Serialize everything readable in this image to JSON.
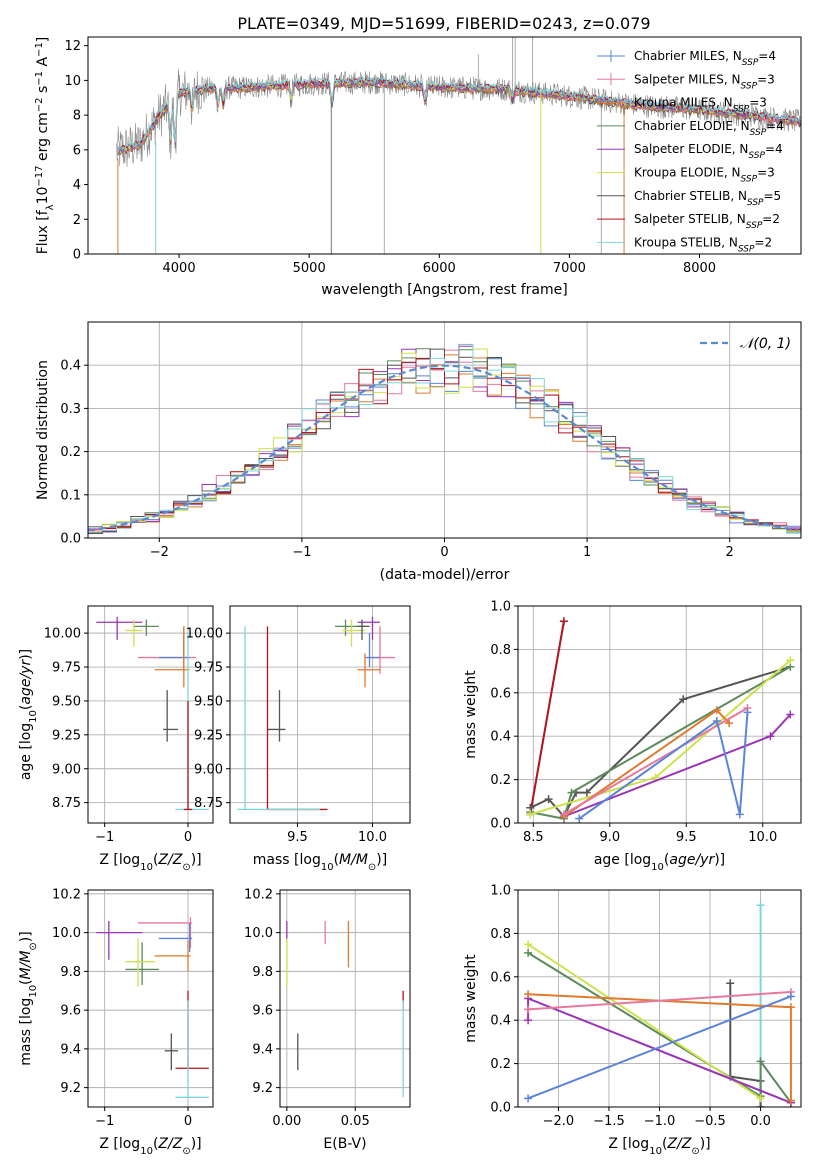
{
  "title": "PLATE=0349, MJD=51699, FIBERID=0243, z=0.079",
  "colors": {
    "Chabrier MILES": "#5b84d8",
    "Salpeter MILES": "#e8799e",
    "Kroupa MILES": "#e07a2e",
    "Chabrier ELODIE": "#5b8a5b",
    "Salpeter ELODIE": "#9a35b5",
    "Kroupa ELODIE": "#cde24a",
    "Chabrier STELIB": "#555555",
    "Salpeter STELIB": "#b5131e",
    "Kroupa STELIB": "#7fd6d8"
  },
  "chart_data": [
    {
      "id": "spectrum",
      "type": "line",
      "title": "PLATE=0349, MJD=51699, FIBERID=0243, z=0.079",
      "xlabel": "wavelength [Angstrom, rest frame]",
      "ylabel_parts": [
        "Flux [f",
        "λ",
        "10",
        "−17",
        " erg cm",
        "−2",
        " s",
        "−1",
        " A",
        "−1",
        "]"
      ],
      "xlim": [
        3300,
        8780
      ],
      "ylim": [
        0,
        12.5
      ],
      "xticks": [
        4000,
        5000,
        6000,
        7000,
        8000
      ],
      "yticks": [
        0,
        2,
        4,
        6,
        8,
        10,
        12
      ],
      "legend_position": "top-right",
      "legend": [
        {
          "name": "Chabrier MILES",
          "nssp": "4"
        },
        {
          "name": "Salpeter MILES",
          "nssp": "3"
        },
        {
          "name": "Kroupa MILES",
          "nssp": "3"
        },
        {
          "name": "Chabrier ELODIE",
          "nssp": "4"
        },
        {
          "name": "Salpeter ELODIE",
          "nssp": "4"
        },
        {
          "name": "Kroupa ELODIE",
          "nssp": "3"
        },
        {
          "name": "Chabrier STELIB",
          "nssp": "5"
        },
        {
          "name": "Salpeter STELIB",
          "nssp": "2"
        },
        {
          "name": "Kroupa STELIB",
          "nssp": "2"
        }
      ],
      "legend_prefix": "N",
      "legend_sub": "SSP",
      "data_continuum": [
        [
          3500,
          5.9
        ],
        [
          3700,
          6.3
        ],
        [
          3850,
          8.0
        ],
        [
          4000,
          9.3
        ],
        [
          4200,
          9.5
        ],
        [
          4500,
          9.6
        ],
        [
          4800,
          9.7
        ],
        [
          5000,
          9.8
        ],
        [
          5500,
          9.9
        ],
        [
          6000,
          9.6
        ],
        [
          6500,
          9.5
        ],
        [
          7000,
          9.1
        ],
        [
          7500,
          8.6
        ],
        [
          8000,
          8.3
        ],
        [
          8500,
          7.9
        ],
        [
          8800,
          7.6
        ]
      ]
    },
    {
      "id": "residuals",
      "type": "histogram",
      "xlabel": "(data-model)/error",
      "ylabel": "Normed distribution",
      "xlim": [
        -2.5,
        2.5
      ],
      "ylim": [
        0,
        0.5
      ],
      "xticks": [
        -2,
        -1,
        0,
        1,
        2
      ],
      "yticks": [
        0.0,
        0.1,
        0.2,
        0.3,
        0.4
      ],
      "legend_label": "𝒩(0, 1)",
      "legend_position": "top-right",
      "bin_width": 0.1
    },
    {
      "id": "age-vs-Z",
      "type": "scatter",
      "xlabel": "Z [log10(Z/Z⊙)]",
      "ylabel": "age [log10(age/yr)]",
      "xlim": [
        -1.2,
        0.3
      ],
      "ylim": [
        8.6,
        10.2
      ],
      "xticks": [
        -1,
        0
      ],
      "yticks": [
        8.75,
        9.0,
        9.25,
        9.5,
        9.75,
        10.0
      ],
      "crosses": [
        {
          "model": "Salpeter ELODIE",
          "x": -0.85,
          "y": 10.08,
          "xl": -1.1,
          "xh": -0.55,
          "yl": 9.95,
          "yh": 10.12
        },
        {
          "model": "Chabrier ELODIE",
          "x": -0.5,
          "y": 10.05,
          "xl": -0.65,
          "xh": -0.35,
          "yl": 9.98,
          "yh": 10.1
        },
        {
          "model": "Kroupa ELODIE",
          "x": -0.65,
          "y": 10.02,
          "xl": -0.75,
          "xh": -0.55,
          "yl": 9.9,
          "yh": 10.1
        },
        {
          "model": "Salpeter MILES",
          "x": -0.05,
          "y": 9.82,
          "xl": -0.6,
          "xh": 0.1,
          "yl": 9.7,
          "yh": 10.05
        },
        {
          "model": "Chabrier MILES",
          "x": -0.05,
          "y": 9.82,
          "xl": -0.35,
          "xh": 0.02,
          "yl": 9.75,
          "yh": 10.0
        },
        {
          "model": "Kroupa MILES",
          "x": -0.05,
          "y": 9.73,
          "xl": -0.4,
          "xh": 0.02,
          "yl": 9.6,
          "yh": 10.05
        },
        {
          "model": "Chabrier STELIB",
          "x": -0.25,
          "y": 9.29,
          "xl": -0.3,
          "xh": -0.12,
          "yl": 9.2,
          "yh": 9.58
        },
        {
          "model": "Kroupa STELIB",
          "x": 0.0,
          "y": 8.7,
          "xl": -0.15,
          "xh": 0.25,
          "yl": 8.7,
          "yh": 10.0
        },
        {
          "model": "Salpeter STELIB",
          "x": 0.0,
          "y": 8.7,
          "xl": -0.05,
          "xh": 0.05,
          "yl": 8.7,
          "yh": 9.5
        }
      ]
    },
    {
      "id": "age-vs-mass",
      "type": "scatter",
      "xlabel": "mass [log10(M/M⊙)]",
      "xlim": [
        9.05,
        10.25
      ],
      "ylim": [
        8.6,
        10.2
      ],
      "xticks": [
        9.5,
        10.0
      ],
      "yticks": [
        8.75,
        9.0,
        9.25,
        9.5,
        9.75,
        10.0
      ],
      "crosses": [
        {
          "model": "Salpeter ELODIE",
          "x": 10.0,
          "y": 10.08,
          "xl": 9.9,
          "xh": 10.05,
          "yl": 9.95,
          "yh": 10.12
        },
        {
          "model": "Chabrier ELODIE",
          "x": 9.82,
          "y": 10.05,
          "xl": 9.75,
          "xh": 9.95,
          "yl": 9.98,
          "yh": 10.1
        },
        {
          "model": "Kroupa ELODIE",
          "x": 9.86,
          "y": 10.02,
          "xl": 9.8,
          "xh": 9.95,
          "yl": 9.9,
          "yh": 10.1
        },
        {
          "model": "Chabrier STELIB",
          "x": 9.93,
          "y": 10.05,
          "xl": 9.9,
          "xh": 9.98,
          "yl": 9.95,
          "yh": 10.1
        },
        {
          "model": "Salpeter MILES",
          "x": 10.05,
          "y": 9.82,
          "xl": 9.98,
          "xh": 10.15,
          "yl": 9.7,
          "yh": 10.05
        },
        {
          "model": "Chabrier MILES",
          "x": 9.98,
          "y": 9.82,
          "xl": 9.95,
          "xh": 10.05,
          "yl": 9.75,
          "yh": 10.0
        },
        {
          "model": "Kroupa MILES",
          "x": 9.95,
          "y": 9.73,
          "xl": 9.9,
          "xh": 10.05,
          "yl": 9.6,
          "yh": 9.85
        },
        {
          "model": "Chabrier STELIB",
          "x": 9.38,
          "y": 9.29,
          "xl": 9.3,
          "xh": 9.42,
          "yl": 9.2,
          "yh": 9.58
        },
        {
          "model": "Salpeter STELIB",
          "x": 9.3,
          "y": 8.7,
          "xl": 9.3,
          "xh": 9.7,
          "yl": 8.7,
          "yh": 10.05
        },
        {
          "model": "Kroupa STELIB",
          "x": 9.15,
          "y": 8.7,
          "xl": 9.1,
          "xh": 9.65,
          "yl": 8.7,
          "yh": 10.05
        }
      ]
    },
    {
      "id": "weight-vs-age",
      "type": "line",
      "xlabel": "age [log10(age/yr)]",
      "ylabel": "mass weight",
      "xlim": [
        8.4,
        10.25
      ],
      "ylim": [
        0,
        1
      ],
      "xticks": [
        8.5,
        9.0,
        9.5,
        10.0
      ],
      "yticks": [
        0.0,
        0.2,
        0.4,
        0.6,
        0.8,
        1.0
      ],
      "series": [
        {
          "model": "Kroupa STELIB",
          "points": [
            [
              8.48,
              0.04
            ],
            [
              8.7,
              0.93
            ]
          ]
        },
        {
          "model": "Salpeter STELIB",
          "points": [
            [
              8.48,
              0.04
            ],
            [
              8.7,
              0.93
            ]
          ]
        },
        {
          "model": "Chabrier STELIB",
          "points": [
            [
              8.48,
              0.07
            ],
            [
              8.6,
              0.11
            ],
            [
              8.7,
              0.03
            ],
            [
              8.78,
              0.14
            ],
            [
              8.85,
              0.14
            ],
            [
              9.48,
              0.57
            ],
            [
              10.18,
              0.72
            ]
          ]
        },
        {
          "model": "Chabrier ELODIE",
          "points": [
            [
              8.48,
              0.05
            ],
            [
              8.7,
              0.02
            ],
            [
              8.75,
              0.14
            ],
            [
              10.18,
              0.72
            ]
          ]
        },
        {
          "model": "Kroupa ELODIE",
          "points": [
            [
              8.48,
              0.04
            ],
            [
              9.3,
              0.21
            ],
            [
              10.18,
              0.75
            ]
          ]
        },
        {
          "model": "Salpeter ELODIE",
          "points": [
            [
              8.7,
              0.03
            ],
            [
              10.05,
              0.4
            ],
            [
              10.18,
              0.5
            ]
          ]
        },
        {
          "model": "Kroupa MILES",
          "points": [
            [
              8.7,
              0.03
            ],
            [
              9.7,
              0.52
            ],
            [
              9.78,
              0.46
            ]
          ]
        },
        {
          "model": "Salpeter MILES",
          "points": [
            [
              8.7,
              0.04
            ],
            [
              9.9,
              0.53
            ]
          ]
        },
        {
          "model": "Chabrier MILES",
          "points": [
            [
              8.8,
              0.02
            ],
            [
              9.7,
              0.47
            ],
            [
              9.85,
              0.04
            ],
            [
              9.9,
              0.51
            ]
          ]
        }
      ]
    },
    {
      "id": "mass-vs-Z",
      "type": "scatter",
      "xlabel": "Z [log10(Z/Z⊙)]",
      "ylabel": "mass [log10(M/M⊙)]",
      "xlim": [
        -1.2,
        0.3
      ],
      "ylim": [
        9.1,
        10.22
      ],
      "xticks": [
        -1,
        0
      ],
      "yticks": [
        9.2,
        9.4,
        9.6,
        9.8,
        10.0,
        10.2
      ],
      "crosses": [
        {
          "model": "Salpeter ELODIE",
          "x": -0.95,
          "y": 10.0,
          "xl": -1.1,
          "xh": -0.55,
          "yl": 9.86,
          "yh": 10.06
        },
        {
          "model": "Chabrier ELODIE",
          "x": -0.55,
          "y": 9.81,
          "xl": -0.75,
          "xh": -0.35,
          "yl": 9.73,
          "yh": 9.95
        },
        {
          "model": "Kroupa ELODIE",
          "x": -0.6,
          "y": 9.85,
          "xl": -0.75,
          "xh": -0.4,
          "yl": 9.72,
          "yh": 9.97
        },
        {
          "model": "Salpeter MILES",
          "x": 0.03,
          "y": 10.05,
          "xl": -0.6,
          "xh": 0.05,
          "yl": 9.92,
          "yh": 10.08
        },
        {
          "model": "Chabrier MILES",
          "x": 0.02,
          "y": 9.97,
          "xl": -0.35,
          "xh": 0.05,
          "yl": 9.9,
          "yh": 10.05
        },
        {
          "model": "Kroupa MILES",
          "x": 0.0,
          "y": 9.88,
          "xl": -0.4,
          "xh": 0.03,
          "yl": 9.8,
          "yh": 9.96
        },
        {
          "model": "Chabrier STELIB",
          "x": -0.2,
          "y": 9.39,
          "xl": -0.28,
          "xh": -0.12,
          "yl": 9.29,
          "yh": 9.48
        },
        {
          "model": "Salpeter STELIB",
          "x": 0.0,
          "y": 9.3,
          "xl": -0.15,
          "xh": 0.25,
          "yl": 9.3,
          "yh": 9.7
        },
        {
          "model": "Kroupa STELIB",
          "x": 0.0,
          "y": 9.15,
          "xl": -0.15,
          "xh": 0.25,
          "yl": 9.15,
          "yh": 9.65
        }
      ]
    },
    {
      "id": "mass-vs-EBV",
      "type": "scatter",
      "xlabel": "E(B-V)",
      "xlim": [
        -0.005,
        0.09
      ],
      "ylim": [
        9.1,
        10.22
      ],
      "xticks": [
        0.0,
        0.05
      ],
      "yticks": [
        9.2,
        9.4,
        9.6,
        9.8,
        10.0,
        10.2
      ],
      "crosses": [
        {
          "model": "Salpeter ELODIE",
          "x": 0.0,
          "y": 10.0,
          "xl": 0.0,
          "xh": 0.0,
          "yl": 9.95,
          "yh": 10.06
        },
        {
          "model": "Kroupa ELODIE",
          "x": 0.0,
          "y": 9.85,
          "xl": 0.0,
          "xh": 0.0,
          "yl": 9.72,
          "yh": 9.97
        },
        {
          "model": "Salpeter MILES",
          "x": 0.028,
          "y": 10.0,
          "xl": 0.028,
          "xh": 0.028,
          "yl": 9.94,
          "yh": 10.06
        },
        {
          "model": "Kroupa MILES",
          "x": 0.045,
          "y": 9.95,
          "xl": 0.045,
          "xh": 0.045,
          "yl": 9.82,
          "yh": 10.06
        },
        {
          "model": "Chabrier STELIB",
          "x": 0.008,
          "y": 9.39,
          "xl": 0.008,
          "xh": 0.008,
          "yl": 9.29,
          "yh": 9.48
        },
        {
          "model": "Salpeter STELIB",
          "x": 0.085,
          "y": 9.6,
          "xl": 0.085,
          "xh": 0.085,
          "yl": 9.6,
          "yh": 9.7
        },
        {
          "model": "Kroupa STELIB",
          "x": 0.085,
          "y": 9.3,
          "xl": 0.085,
          "xh": 0.085,
          "yl": 9.15,
          "yh": 9.65
        }
      ]
    },
    {
      "id": "weight-vs-Z",
      "type": "line",
      "xlabel": "Z [log10(Z/Z⊙)]",
      "ylabel": "mass weight",
      "xlim": [
        -2.4,
        0.4
      ],
      "ylim": [
        0,
        1
      ],
      "xticks": [
        -2.0,
        -1.5,
        -1.0,
        -0.5,
        0.0
      ],
      "yticks": [
        0.0,
        0.2,
        0.4,
        0.6,
        0.8,
        1.0
      ],
      "series": [
        {
          "model": "Kroupa STELIB",
          "points": [
            [
              0.0,
              0.93
            ],
            [
              0.0,
              0.0
            ]
          ]
        },
        {
          "model": "Chabrier STELIB",
          "points": [
            [
              -0.3,
              0.57
            ],
            [
              -0.3,
              0.14
            ],
            [
              0.0,
              0.12
            ],
            [
              0.0,
              0.0
            ]
          ]
        },
        {
          "model": "Chabrier ELODIE",
          "points": [
            [
              -2.3,
              0.71
            ],
            [
              0.0,
              0.05
            ],
            [
              0.0,
              0.21
            ],
            [
              0.3,
              0.02
            ]
          ]
        },
        {
          "model": "Kroupa ELODIE",
          "points": [
            [
              -2.3,
              0.75
            ],
            [
              0.0,
              0.04
            ]
          ]
        },
        {
          "model": "Salpeter ELODIE",
          "points": [
            [
              -2.3,
              0.4
            ],
            [
              -2.3,
              0.5
            ],
            [
              0.3,
              0.02
            ]
          ]
        },
        {
          "model": "Kroupa MILES",
          "points": [
            [
              -2.3,
              0.52
            ],
            [
              0.3,
              0.46
            ],
            [
              0.3,
              0.03
            ]
          ]
        },
        {
          "model": "Salpeter MILES",
          "points": [
            [
              -2.3,
              0.45
            ],
            [
              0.3,
              0.53
            ]
          ]
        },
        {
          "model": "Chabrier MILES",
          "points": [
            [
              -2.3,
              0.04
            ],
            [
              0.3,
              0.51
            ]
          ]
        }
      ]
    }
  ]
}
